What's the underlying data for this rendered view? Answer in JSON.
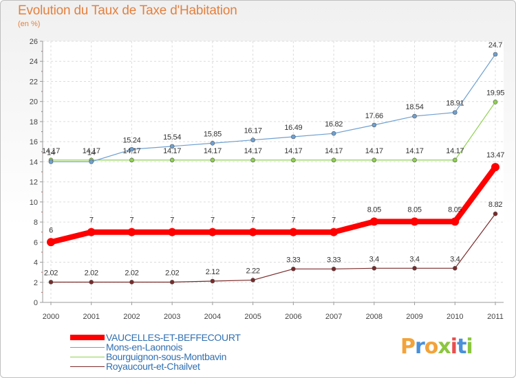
{
  "header": {
    "title": "Evolution du Taux de Taxe d'Habitation",
    "subtitle": "(en %)"
  },
  "logo": {
    "text": "Proxiti",
    "colors": [
      "#f2a33a",
      "#4a90d9",
      "#f2a33a",
      "#8cc63f",
      "#e94e4e",
      "#4a90d9",
      "#8cc63f"
    ]
  },
  "chart_data": {
    "type": "line",
    "x": [
      "2000",
      "2001",
      "2002",
      "2003",
      "2004",
      "2005",
      "2006",
      "2007",
      "2008",
      "2009",
      "2010",
      "2011"
    ],
    "ylim": [
      0,
      26
    ],
    "yticks": [
      "0",
      "2",
      "4",
      "6",
      "8",
      "10",
      "12",
      "14",
      "16",
      "18",
      "20",
      "22",
      "24",
      "26"
    ],
    "grid": true,
    "legend": "bottom-left",
    "series": [
      {
        "name": "VAUCELLES-ET-BEFFECOURT",
        "color": "#ff0000",
        "values": [
          6,
          7,
          7,
          7,
          7,
          7,
          7,
          7,
          8.05,
          8.05,
          8.05,
          13.47
        ],
        "labels": [
          "6",
          "7",
          "7",
          "7",
          "7",
          "7",
          "7",
          "7",
          "8.05",
          "8.05",
          "8.05",
          "13.47"
        ]
      },
      {
        "name": "Mons-en-Laonnois",
        "color": "#6fa0d0",
        "values": [
          14,
          14,
          15.24,
          15.54,
          15.85,
          16.17,
          16.49,
          16.82,
          17.66,
          18.54,
          18.91,
          24.7
        ],
        "labels": [
          "14",
          "14",
          "15.24",
          "15.54",
          "15.85",
          "16.17",
          "16.49",
          "16.82",
          "17.66",
          "18.54",
          "18.91",
          "24.7"
        ]
      },
      {
        "name": "Bourguignon-sous-Montbavin",
        "color": "#8fd14f",
        "values": [
          14.17,
          14.17,
          14.17,
          14.17,
          14.17,
          14.17,
          14.17,
          14.17,
          14.17,
          14.17,
          14.17,
          19.95
        ],
        "labels": [
          "14.17",
          "14.17",
          "14.17",
          "14.17",
          "14.17",
          "14.17",
          "14.17",
          "14.17",
          "14.17",
          "14.17",
          "14.17",
          "19.95"
        ]
      },
      {
        "name": "Royaucourt-et-Chailvet",
        "color": "#7a2a2a",
        "values": [
          2.02,
          2.02,
          2.02,
          2.02,
          2.12,
          2.22,
          3.33,
          3.33,
          3.4,
          3.4,
          3.4,
          8.82
        ],
        "labels": [
          "2.02",
          "2.02",
          "2.02",
          "2.02",
          "2.12",
          "2.22",
          "3.33",
          "3.33",
          "3.4",
          "3.4",
          "3.4",
          "8.82"
        ]
      }
    ]
  }
}
